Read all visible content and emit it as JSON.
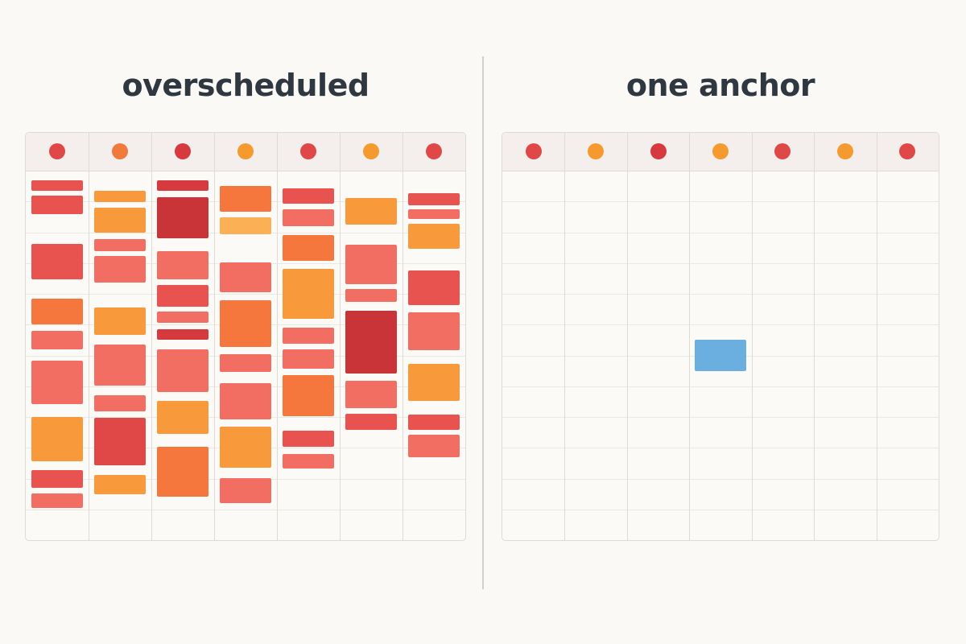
{
  "left_panel": {
    "title": "overscheduled",
    "day_dots": [
      "#e04848",
      "#f07a3e",
      "#d63a3e",
      "#f59a2e",
      "#e04848",
      "#f59a2e",
      "#e04848"
    ],
    "events": [
      {
        "day": 0,
        "start": 0.0,
        "end": 0.028,
        "color": "#e8534f"
      },
      {
        "day": 0,
        "start": 0.042,
        "end": 0.094,
        "color": "#e8534f"
      },
      {
        "day": 0,
        "start": 0.176,
        "end": 0.276,
        "color": "#e8534f"
      },
      {
        "day": 0,
        "start": 0.328,
        "end": 0.4,
        "color": "#f5773d"
      },
      {
        "day": 0,
        "start": 0.418,
        "end": 0.47,
        "color": "#f26e62"
      },
      {
        "day": 0,
        "start": 0.5,
        "end": 0.622,
        "color": "#f26e62"
      },
      {
        "day": 0,
        "start": 0.658,
        "end": 0.78,
        "color": "#f89a3c"
      },
      {
        "day": 0,
        "start": 0.806,
        "end": 0.854,
        "color": "#e8534f"
      },
      {
        "day": 0,
        "start": 0.87,
        "end": 0.91,
        "color": "#f26e62"
      },
      {
        "day": 1,
        "start": 0.028,
        "end": 0.06,
        "color": "#f89a3c"
      },
      {
        "day": 1,
        "start": 0.076,
        "end": 0.146,
        "color": "#f89a3c"
      },
      {
        "day": 1,
        "start": 0.164,
        "end": 0.196,
        "color": "#f26e62"
      },
      {
        "day": 1,
        "start": 0.21,
        "end": 0.284,
        "color": "#f26e62"
      },
      {
        "day": 1,
        "start": 0.354,
        "end": 0.43,
        "color": "#f89a3c"
      },
      {
        "day": 1,
        "start": 0.456,
        "end": 0.57,
        "color": "#f26e62"
      },
      {
        "day": 1,
        "start": 0.598,
        "end": 0.642,
        "color": "#f26e62"
      },
      {
        "day": 1,
        "start": 0.66,
        "end": 0.792,
        "color": "#e04848"
      },
      {
        "day": 1,
        "start": 0.818,
        "end": 0.872,
        "color": "#f89a3c"
      },
      {
        "day": 2,
        "start": 0.0,
        "end": 0.028,
        "color": "#d63a3e"
      },
      {
        "day": 2,
        "start": 0.046,
        "end": 0.16,
        "color": "#c93438"
      },
      {
        "day": 2,
        "start": 0.196,
        "end": 0.276,
        "color": "#f26e62"
      },
      {
        "day": 2,
        "start": 0.29,
        "end": 0.352,
        "color": "#e8534f"
      },
      {
        "day": 2,
        "start": 0.364,
        "end": 0.396,
        "color": "#f26e62"
      },
      {
        "day": 2,
        "start": 0.414,
        "end": 0.442,
        "color": "#d63a3e"
      },
      {
        "day": 2,
        "start": 0.47,
        "end": 0.588,
        "color": "#f26e62"
      },
      {
        "day": 2,
        "start": 0.614,
        "end": 0.704,
        "color": "#f89a3c"
      },
      {
        "day": 2,
        "start": 0.74,
        "end": 0.88,
        "color": "#f5773d"
      },
      {
        "day": 3,
        "start": 0.016,
        "end": 0.088,
        "color": "#f5773d"
      },
      {
        "day": 3,
        "start": 0.102,
        "end": 0.15,
        "color": "#fbb055"
      },
      {
        "day": 3,
        "start": 0.228,
        "end": 0.31,
        "color": "#f26e62"
      },
      {
        "day": 3,
        "start": 0.334,
        "end": 0.462,
        "color": "#f5773d"
      },
      {
        "day": 3,
        "start": 0.484,
        "end": 0.532,
        "color": "#f26e62"
      },
      {
        "day": 3,
        "start": 0.564,
        "end": 0.664,
        "color": "#f26e62"
      },
      {
        "day": 3,
        "start": 0.684,
        "end": 0.798,
        "color": "#f89a3c"
      },
      {
        "day": 3,
        "start": 0.828,
        "end": 0.896,
        "color": "#f26e62"
      },
      {
        "day": 4,
        "start": 0.022,
        "end": 0.064,
        "color": "#e8534f"
      },
      {
        "day": 4,
        "start": 0.08,
        "end": 0.128,
        "color": "#f26e62"
      },
      {
        "day": 4,
        "start": 0.152,
        "end": 0.224,
        "color": "#f5773d"
      },
      {
        "day": 4,
        "start": 0.246,
        "end": 0.384,
        "color": "#f89a3c"
      },
      {
        "day": 4,
        "start": 0.41,
        "end": 0.454,
        "color": "#f26e62"
      },
      {
        "day": 4,
        "start": 0.47,
        "end": 0.524,
        "color": "#f26e62"
      },
      {
        "day": 4,
        "start": 0.542,
        "end": 0.656,
        "color": "#f5773d"
      },
      {
        "day": 4,
        "start": 0.696,
        "end": 0.74,
        "color": "#e8534f"
      },
      {
        "day": 4,
        "start": 0.76,
        "end": 0.8,
        "color": "#f26e62"
      },
      {
        "day": 5,
        "start": 0.05,
        "end": 0.122,
        "color": "#f89a3c"
      },
      {
        "day": 5,
        "start": 0.18,
        "end": 0.288,
        "color": "#f26e62"
      },
      {
        "day": 5,
        "start": 0.302,
        "end": 0.338,
        "color": "#f26e62"
      },
      {
        "day": 5,
        "start": 0.362,
        "end": 0.538,
        "color": "#c93438"
      },
      {
        "day": 5,
        "start": 0.556,
        "end": 0.634,
        "color": "#f26e62"
      },
      {
        "day": 5,
        "start": 0.648,
        "end": 0.694,
        "color": "#e8534f"
      },
      {
        "day": 6,
        "start": 0.036,
        "end": 0.07,
        "color": "#e8534f"
      },
      {
        "day": 6,
        "start": 0.08,
        "end": 0.108,
        "color": "#f26e62"
      },
      {
        "day": 6,
        "start": 0.12,
        "end": 0.19,
        "color": "#f89a3c"
      },
      {
        "day": 6,
        "start": 0.25,
        "end": 0.346,
        "color": "#e8534f"
      },
      {
        "day": 6,
        "start": 0.368,
        "end": 0.472,
        "color": "#f26e62"
      },
      {
        "day": 6,
        "start": 0.51,
        "end": 0.612,
        "color": "#f89a3c"
      },
      {
        "day": 6,
        "start": 0.65,
        "end": 0.694,
        "color": "#e8534f"
      },
      {
        "day": 6,
        "start": 0.708,
        "end": 0.77,
        "color": "#f26e62"
      }
    ]
  },
  "right_panel": {
    "title": "one anchor",
    "day_dots": [
      "#e04848",
      "#f59a2e",
      "#d63a3e",
      "#f59a2e",
      "#e04848",
      "#f59a2e",
      "#e04848"
    ],
    "events": [
      {
        "day": 3,
        "start": 0.442,
        "end": 0.53,
        "color": "#6aafe0"
      }
    ]
  },
  "grid": {
    "days": 7,
    "hour_rows": 12
  }
}
